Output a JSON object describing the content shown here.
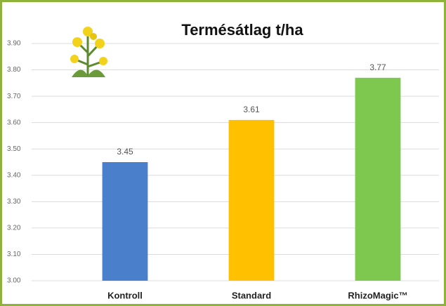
{
  "chart_data": {
    "type": "bar",
    "title": "Termésátlag t/ha",
    "categories": [
      "Kontroll",
      "Standard",
      "RhizoMagic™"
    ],
    "values": [
      3.45,
      3.61,
      3.77
    ],
    "colors": [
      "#4a7fcb",
      "#ffc000",
      "#7ec850"
    ],
    "ylim": [
      3.0,
      3.9
    ],
    "yticks": [
      {
        "value": 3.0,
        "label": "3.00"
      },
      {
        "value": 3.1,
        "label": "3.10"
      },
      {
        "value": 3.2,
        "label": "3.20"
      },
      {
        "value": 3.3,
        "label": "3.30"
      },
      {
        "value": 3.4,
        "label": "3.40"
      },
      {
        "value": 3.5,
        "label": "3.50"
      },
      {
        "value": 3.6,
        "label": "3.60"
      },
      {
        "value": 3.7,
        "label": "3.70"
      },
      {
        "value": 3.8,
        "label": "3.80"
      },
      {
        "value": 3.9,
        "label": "3.90"
      }
    ],
    "grid": true
  }
}
